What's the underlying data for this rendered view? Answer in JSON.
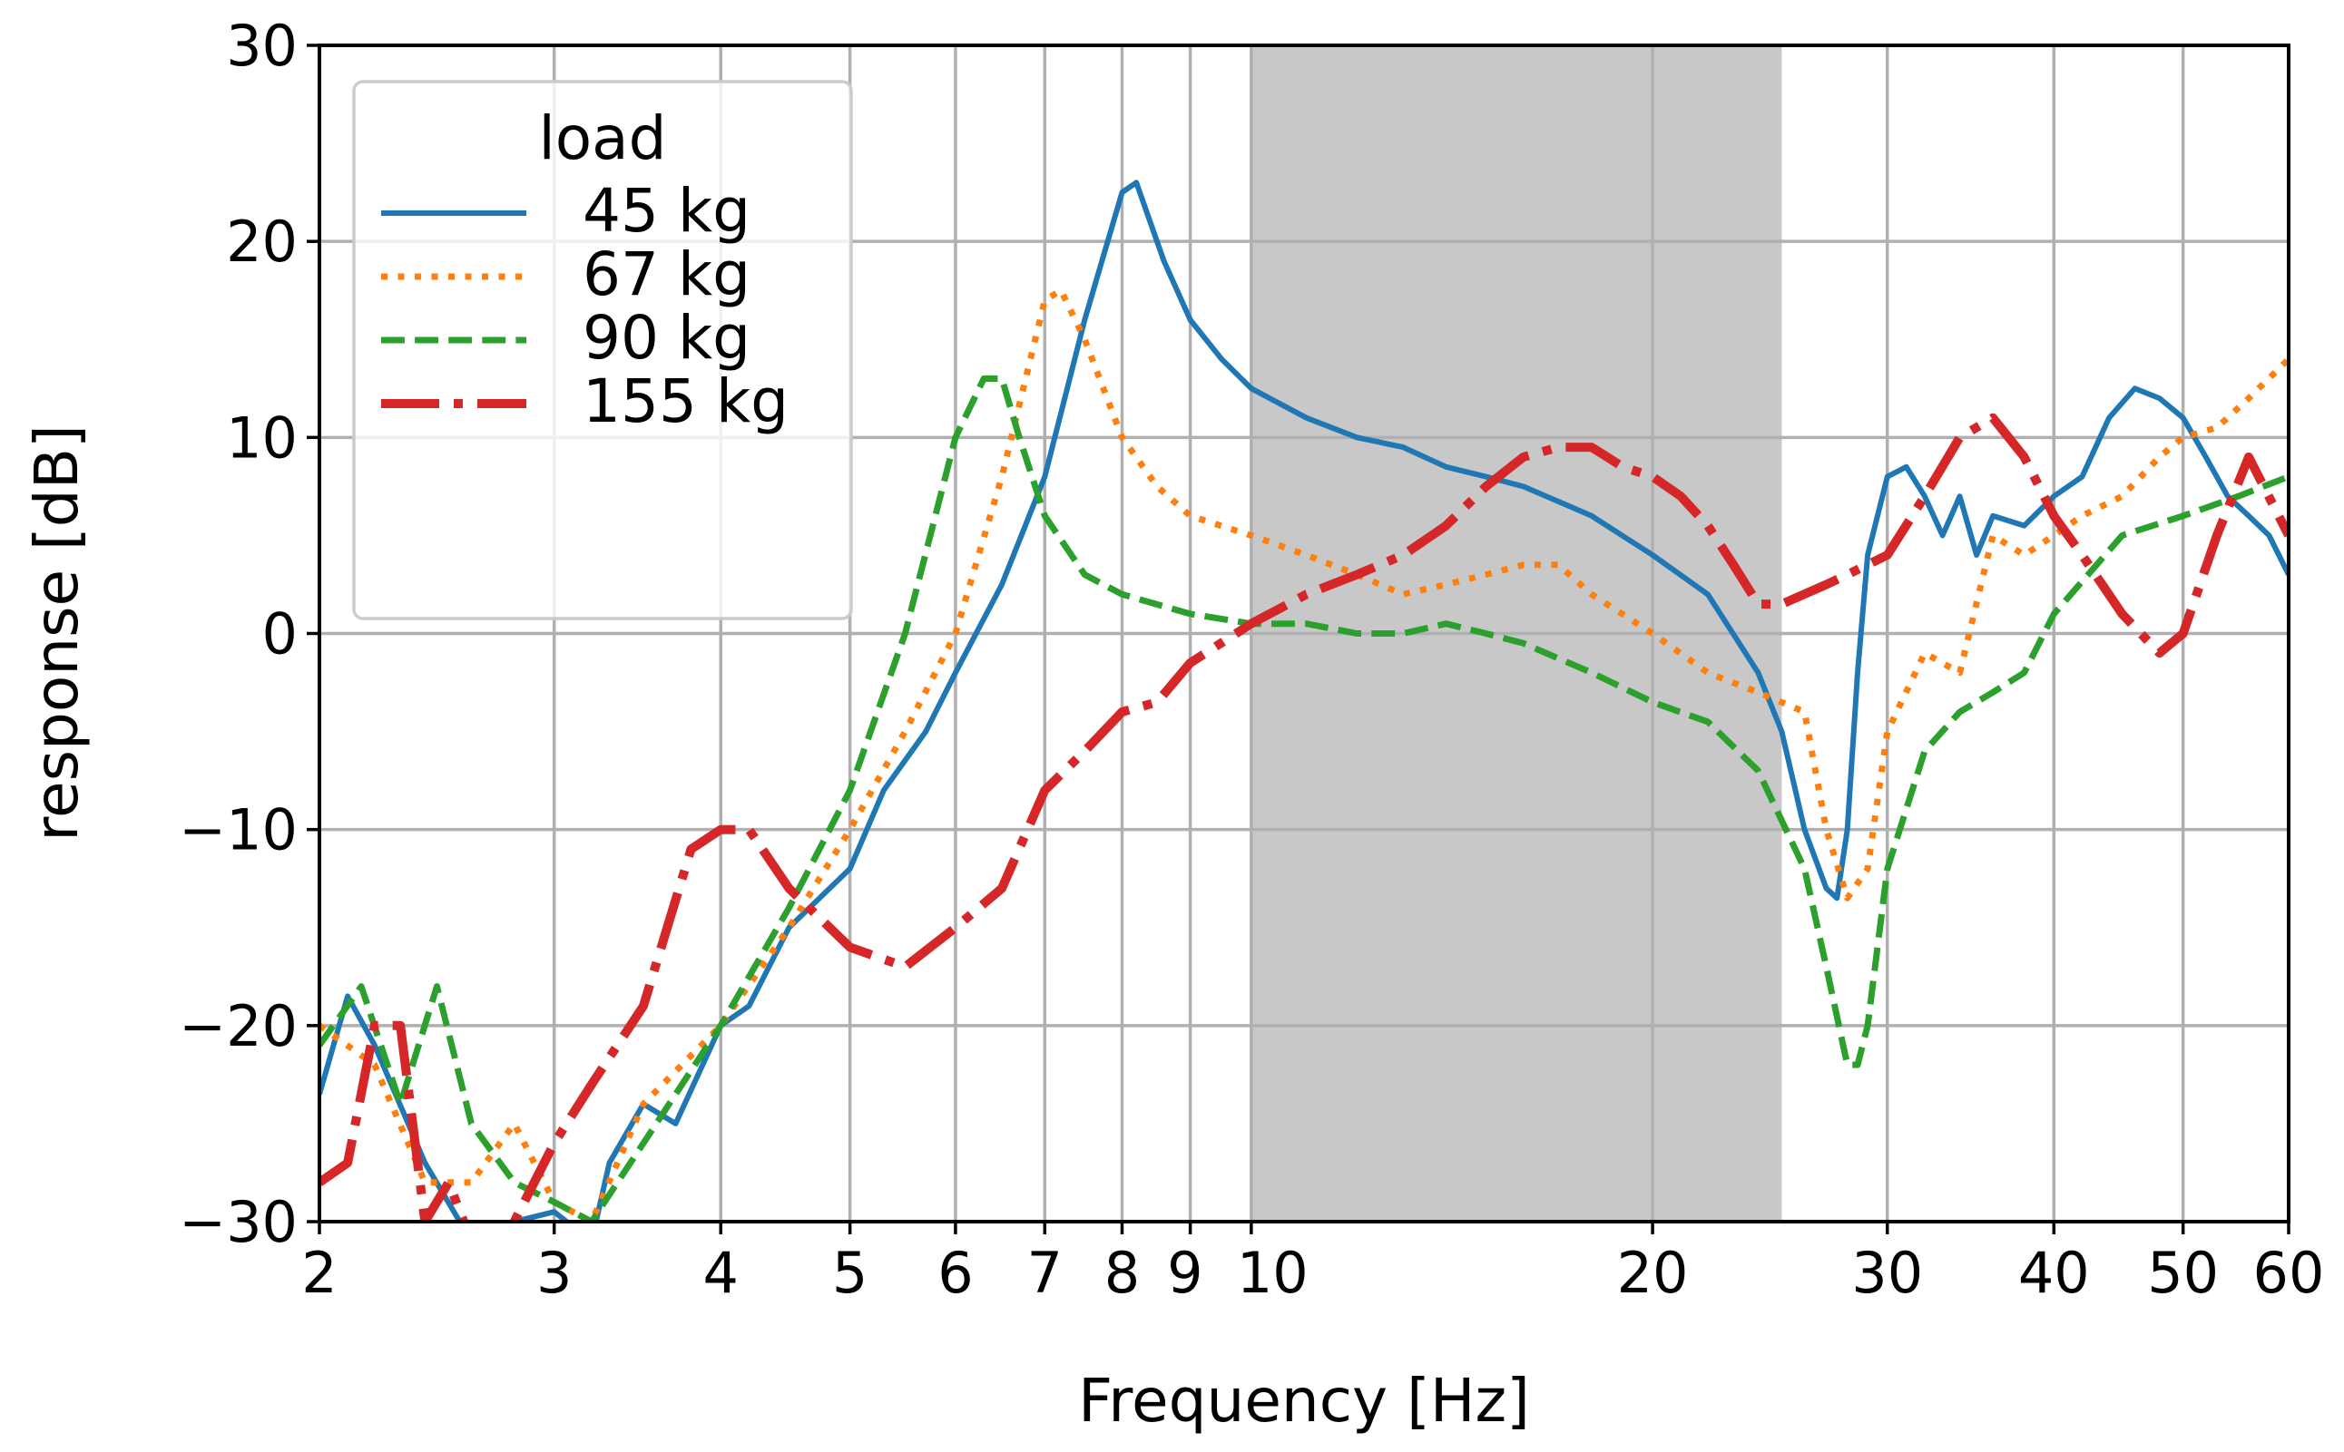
{
  "chart_data": {
    "type": "line",
    "title": "",
    "xlabel": "Frequency [Hz]",
    "ylabel": "response [dB]",
    "xscale": "log",
    "xlim": [
      2,
      60
    ],
    "ylim": [
      -30,
      30
    ],
    "grid": true,
    "xticks": [
      2,
      3,
      4,
      5,
      6,
      7,
      8,
      9,
      10,
      20,
      30,
      40,
      50,
      60
    ],
    "xtick_labels": [
      "2",
      "3",
      "4",
      "5",
      "6",
      "7",
      "8",
      "9",
      "10",
      "20",
      "30",
      "40",
      "50",
      "60"
    ],
    "yticks": [
      -30,
      -20,
      -10,
      0,
      10,
      20,
      30
    ],
    "ytick_labels": [
      "−30",
      "−20",
      "−10",
      "0",
      "10",
      "20",
      "30"
    ],
    "shaded_band": {
      "x_start": 10,
      "x_end": 25
    },
    "legend": {
      "title": "load",
      "placement": "top-left"
    },
    "series": [
      {
        "name": "45 kg",
        "color": "#1f77b4",
        "style": "solid",
        "x": [
          2.0,
          2.1,
          2.2,
          2.4,
          2.6,
          2.8,
          3.0,
          3.2,
          3.3,
          3.5,
          3.7,
          4.0,
          4.2,
          4.5,
          5.0,
          5.3,
          5.7,
          6.0,
          6.5,
          7.0,
          7.5,
          8.0,
          8.2,
          8.6,
          9.0,
          9.5,
          10.0,
          11.0,
          12.0,
          13.0,
          14.0,
          15.0,
          16.0,
          18.0,
          20.0,
          22.0,
          24.0,
          25.0,
          26.0,
          27.0,
          27.5,
          28.0,
          28.5,
          29.0,
          30.0,
          31.0,
          32.0,
          33.0,
          34.0,
          35.0,
          36.0,
          38.0,
          40.0,
          42.0,
          44.0,
          46.0,
          48.0,
          50.0,
          52.0,
          54.0,
          56.0,
          58.0,
          60.0
        ],
        "y": [
          -23.5,
          -18.5,
          -21,
          -27,
          -31,
          -30,
          -29.5,
          -31,
          -27,
          -24,
          -25,
          -20,
          -19,
          -15,
          -12,
          -8,
          -5,
          -2,
          2.5,
          8,
          16,
          22.5,
          23,
          19,
          16,
          14,
          12.5,
          11,
          10,
          9.5,
          8.5,
          8,
          7.5,
          6,
          4,
          2,
          -2,
          -5,
          -10,
          -13,
          -13.5,
          -10,
          -2,
          4,
          8,
          8.5,
          7,
          5,
          7,
          4,
          6,
          5.5,
          7,
          8,
          11,
          12.5,
          12,
          11,
          9,
          7,
          6,
          5,
          3
        ]
      },
      {
        "name": "67 kg",
        "color": "#ff7f0e",
        "style": "dotted",
        "x": [
          2.0,
          2.2,
          2.4,
          2.6,
          2.8,
          3.0,
          3.2,
          3.5,
          4.0,
          4.5,
          5.0,
          5.5,
          6.0,
          6.5,
          7.0,
          7.2,
          7.5,
          8.0,
          8.5,
          9.0,
          10.0,
          11.0,
          12.0,
          13.0,
          14.0,
          15.0,
          16.0,
          17.0,
          18.0,
          20.0,
          22.0,
          24.0,
          26.0,
          27.0,
          28.0,
          29.0,
          30.0,
          32.0,
          34.0,
          36.0,
          38.0,
          40.0,
          42.0,
          45.0,
          48.0,
          50.0,
          53.0,
          56.0,
          60.0
        ],
        "y": [
          -20,
          -22,
          -28,
          -28,
          -25,
          -29,
          -30,
          -24,
          -20,
          -15,
          -10,
          -5,
          0,
          8,
          17,
          17.5,
          15,
          10,
          7.5,
          6,
          5,
          4,
          3,
          2,
          2.5,
          3,
          3.5,
          3.5,
          2,
          0,
          -2,
          -3,
          -4,
          -10,
          -13.5,
          -12,
          -5,
          -1,
          -2,
          5,
          4,
          5,
          6,
          7,
          9,
          10,
          10.5,
          12,
          14
        ]
      },
      {
        "name": "90 kg",
        "color": "#2ca02c",
        "style": "dashed",
        "x": [
          2.0,
          2.15,
          2.3,
          2.45,
          2.6,
          2.8,
          3.0,
          3.2,
          3.5,
          4.0,
          4.5,
          5.0,
          5.5,
          6.0,
          6.3,
          6.5,
          6.7,
          7.0,
          7.5,
          8.0,
          9.0,
          10.0,
          11.0,
          12.0,
          13.0,
          14.0,
          15.0,
          16.0,
          18.0,
          20.0,
          22.0,
          24.0,
          26.0,
          27.0,
          28.0,
          28.5,
          29.0,
          30.0,
          32.0,
          34.0,
          36.0,
          38.0,
          40.0,
          45.0,
          50.0,
          55.0,
          60.0
        ],
        "y": [
          -21,
          -18,
          -24,
          -18,
          -25,
          -28,
          -29,
          -30,
          -26,
          -20,
          -14,
          -8,
          0,
          10,
          13,
          13,
          10,
          6,
          3,
          2,
          1,
          0.5,
          0.5,
          0,
          0,
          0.5,
          0,
          -0.5,
          -2,
          -3.5,
          -4.5,
          -7,
          -12,
          -17,
          -22,
          -22,
          -20,
          -12,
          -6,
          -4,
          -3,
          -2,
          1,
          5,
          6,
          7,
          8
        ]
      },
      {
        "name": "155 kg",
        "color": "#d62728",
        "style": "dashdot",
        "x": [
          2.0,
          2.1,
          2.2,
          2.3,
          2.4,
          2.5,
          2.6,
          2.8,
          3.0,
          3.2,
          3.5,
          3.8,
          4.0,
          4.2,
          4.5,
          5.0,
          5.5,
          6.0,
          6.5,
          7.0,
          7.5,
          8.0,
          8.5,
          9.0,
          10.0,
          11.0,
          12.0,
          13.0,
          14.0,
          15.0,
          16.0,
          17.0,
          18.0,
          19.0,
          20.0,
          21.0,
          22.0,
          23.0,
          24.0,
          25.0,
          27.0,
          28.0,
          30.0,
          32.0,
          34.0,
          36.0,
          38.0,
          40.0,
          42.0,
          45.0,
          48.0,
          50.0,
          53.0,
          56.0,
          60.0
        ],
        "y": [
          -28,
          -27,
          -20,
          -20,
          -30,
          -28,
          -31,
          -30,
          -26,
          -23,
          -19,
          -11,
          -10,
          -10,
          -13,
          -16,
          -17,
          -15,
          -13,
          -8,
          -6,
          -4,
          -3.5,
          -1.5,
          0.5,
          2,
          3,
          4,
          5.5,
          7.5,
          9,
          9.5,
          9.5,
          8.5,
          8,
          7,
          5.5,
          3.5,
          1.5,
          1.5,
          2.5,
          3,
          4,
          7,
          10,
          11,
          9,
          6,
          4,
          1,
          -1,
          0,
          5,
          9,
          5
        ]
      }
    ]
  }
}
